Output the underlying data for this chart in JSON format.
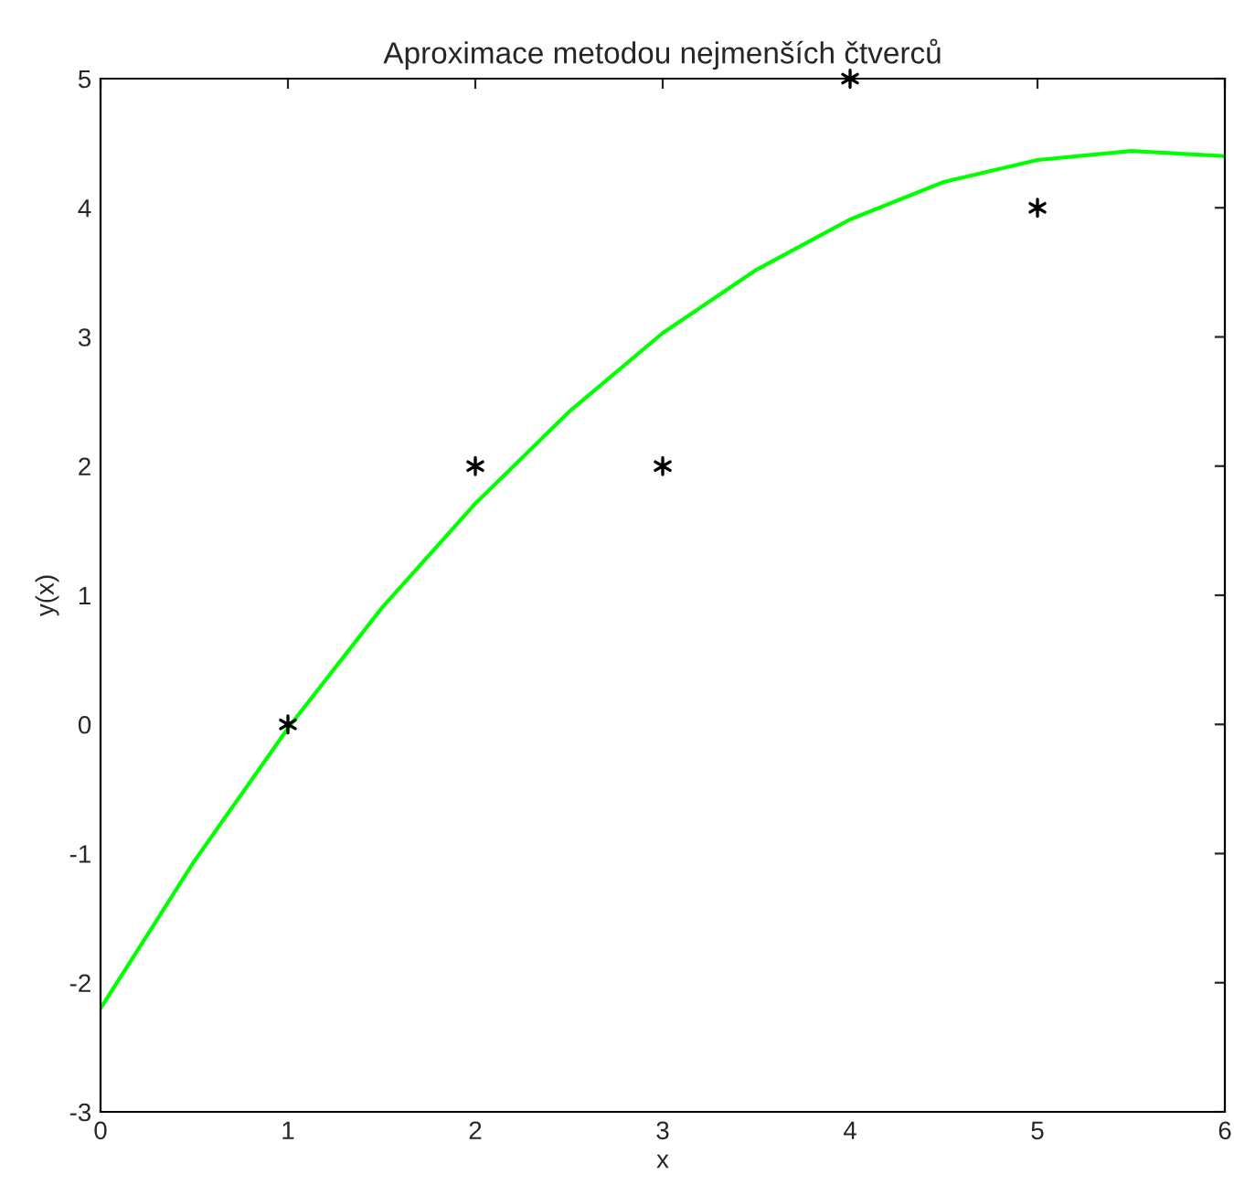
{
  "chart_data": {
    "type": "line",
    "title": "Aproximace metodou nejmenších čtverců",
    "xlabel": "x",
    "ylabel": "y(x)",
    "series": [
      {
        "color": "#00ff00",
        "x": [
          0,
          0.5,
          1,
          1.5,
          2,
          2.5,
          3,
          3.5,
          4,
          4.5,
          5,
          5.5,
          6
        ],
        "values": [
          -2.2,
          -1.06,
          -0.03,
          0.9,
          1.71,
          2.42,
          3.03,
          3.52,
          3.91,
          4.2,
          4.37,
          4.44,
          4.4
        ],
        "marker": "none",
        "line_style": "solid"
      },
      {
        "type": "scatter",
        "color": "#000000",
        "x": [
          1,
          2,
          3,
          4,
          5
        ],
        "values": [
          0,
          2,
          2,
          5,
          4
        ],
        "marker": "cross"
      }
    ],
    "xlim": [
      0,
      6
    ],
    "ylim": [
      -3,
      5
    ],
    "xticks": [
      0,
      1,
      2,
      3,
      4,
      5,
      6
    ],
    "yticks": [
      -3,
      -2,
      -1,
      0,
      1,
      2,
      3,
      4,
      5
    ],
    "grid": false,
    "legend": false
  }
}
